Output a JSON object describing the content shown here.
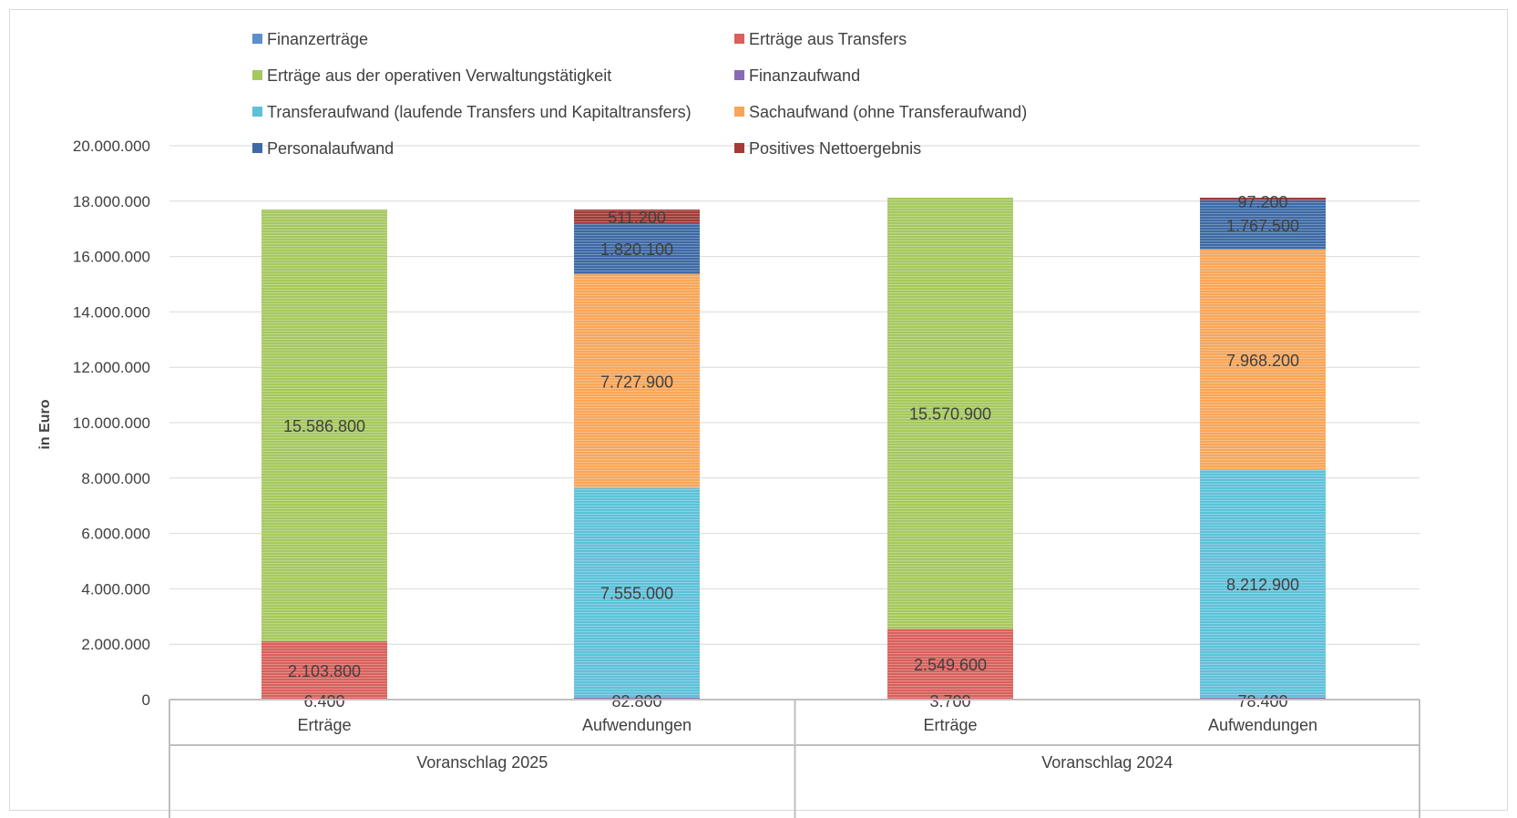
{
  "chart_data": {
    "type": "bar",
    "stacked": true,
    "ylabel": "in Euro",
    "ylim": [
      0,
      20000000
    ],
    "ytick_step": 2000000,
    "yticks": [
      "0",
      "2.000.000",
      "4.000.000",
      "6.000.000",
      "8.000.000",
      "10.000.000",
      "12.000.000",
      "14.000.000",
      "16.000.000",
      "18.000.000",
      "20.000.000"
    ],
    "grid": true,
    "legend_position": "top",
    "groups": [
      {
        "label": "Voranschlag 2025",
        "categories": [
          "Erträge",
          "Aufwendungen"
        ]
      },
      {
        "label": "Voranschlag 2024",
        "categories": [
          "Erträge",
          "Aufwendungen"
        ]
      }
    ],
    "categories": [
      "Erträge",
      "Aufwendungen",
      "Erträge",
      "Aufwendungen"
    ],
    "series": [
      {
        "name": "Finanzerträge",
        "color": "#5b8ecb",
        "values": [
          6400,
          0,
          3700,
          0
        ],
        "labels": [
          "6.400",
          "",
          "3.700",
          ""
        ]
      },
      {
        "name": "Erträge aus Transfers",
        "color": "#d9605c",
        "values": [
          2103800,
          0,
          2549600,
          0
        ],
        "labels": [
          "2.103.800",
          "",
          "2.549.600",
          ""
        ]
      },
      {
        "name": "Erträge aus der operativen Verwaltungstätigkeit",
        "color": "#a6c85f",
        "values": [
          15586800,
          0,
          15570900,
          0
        ],
        "labels": [
          "15.586.800",
          "",
          "15.570.900",
          ""
        ]
      },
      {
        "name": "Finanzaufwand",
        "color": "#8a6bb3",
        "values": [
          0,
          82800,
          0,
          78400
        ],
        "labels": [
          "",
          "82.800",
          "",
          "78.400"
        ]
      },
      {
        "name": "Transferaufwand (laufende Transfers und Kapitaltransfers)",
        "color": "#5fc1d9",
        "values": [
          0,
          7555000,
          0,
          8212900
        ],
        "labels": [
          "",
          "7.555.000",
          "",
          "8.212.900"
        ]
      },
      {
        "name": "Sachaufwand (ohne Transferaufwand)",
        "color": "#f7a65a",
        "values": [
          0,
          7727900,
          0,
          7968200
        ],
        "labels": [
          "",
          "7.727.900",
          "",
          "7.968.200"
        ]
      },
      {
        "name": "Personalaufwand",
        "color": "#3e6aa6",
        "values": [
          0,
          1820100,
          0,
          1767500
        ],
        "labels": [
          "",
          "1.820.100",
          "",
          "1.767.500"
        ]
      },
      {
        "name": "Positives Nettoergebnis",
        "color": "#a33a36",
        "values": [
          0,
          511200,
          0,
          97200
        ],
        "labels": [
          "",
          "511.200",
          "",
          "97.200"
        ]
      }
    ]
  }
}
